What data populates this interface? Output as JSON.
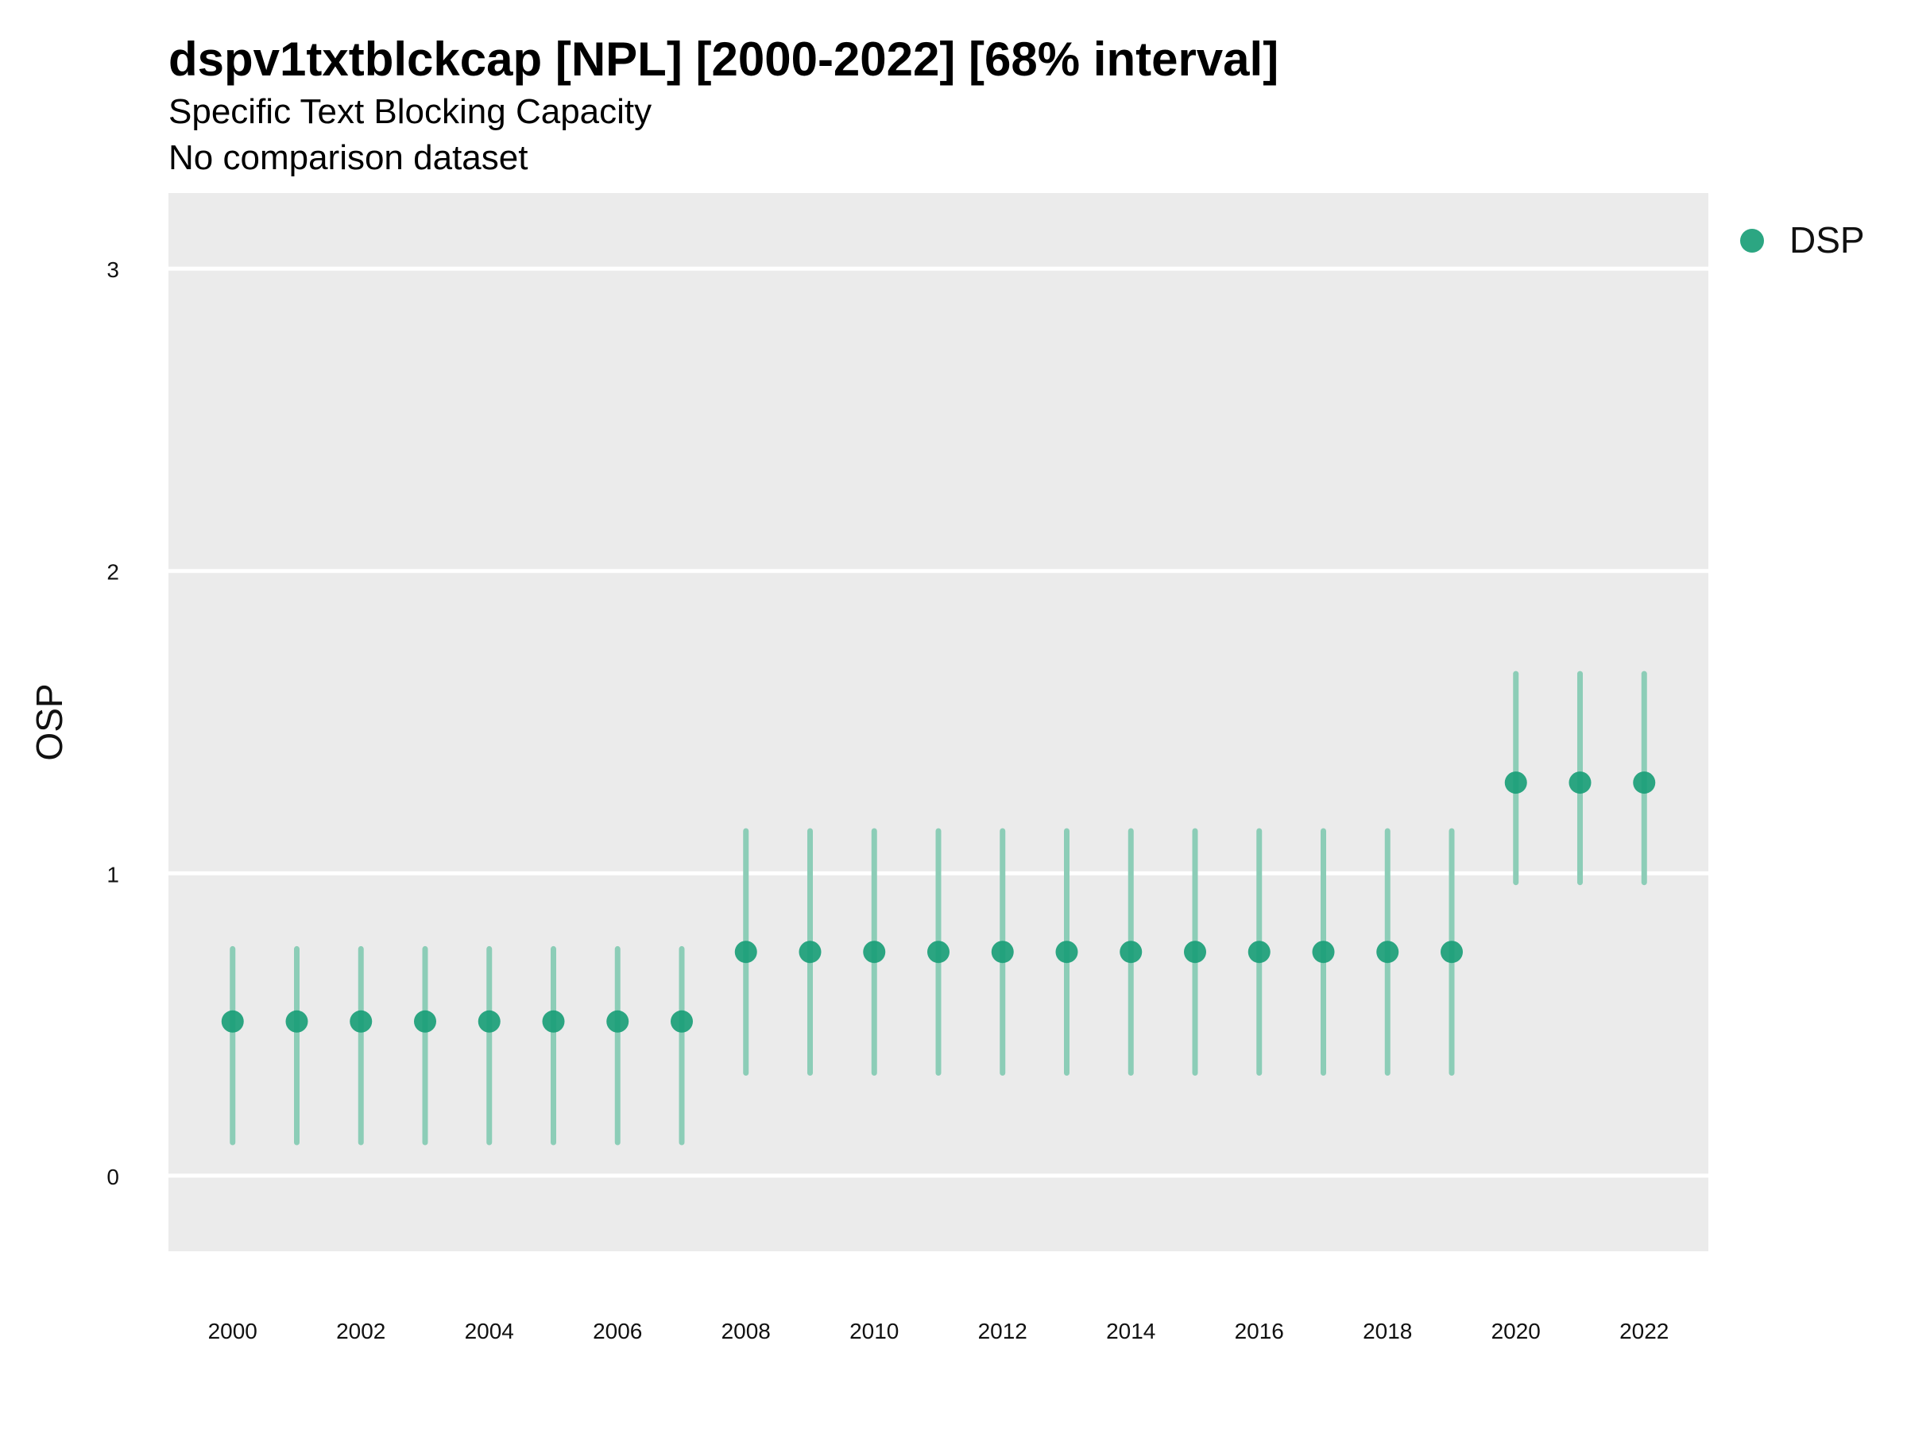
{
  "chart_data": {
    "type": "scatter",
    "title": "dspv1txtblckcap [NPL] [2000-2022] [68% interval]",
    "subtitle": "Specific Text Blocking Capacity",
    "caption": "No comparison dataset",
    "xlabel": "",
    "ylabel": "OSP",
    "ylim": [
      -0.25,
      3.25
    ],
    "xlim": [
      1999,
      2023
    ],
    "yticks": [
      "0",
      "1",
      "2",
      "3"
    ],
    "xticks": [
      "2000",
      "2002",
      "2004",
      "2006",
      "2008",
      "2010",
      "2012",
      "2014",
      "2016",
      "2018",
      "2020",
      "2022"
    ],
    "grid": true,
    "legend_position": "right",
    "colors": {
      "point": "#1a9e77",
      "interval": "#8ccdb7",
      "panel": "#ebebeb",
      "grid": "#ffffff"
    },
    "series": [
      {
        "name": "DSP",
        "x": [
          2000,
          2001,
          2002,
          2003,
          2004,
          2005,
          2006,
          2007,
          2008,
          2009,
          2010,
          2011,
          2012,
          2013,
          2014,
          2015,
          2016,
          2017,
          2018,
          2019,
          2020,
          2021,
          2022
        ],
        "y": [
          0.51,
          0.51,
          0.51,
          0.51,
          0.51,
          0.51,
          0.51,
          0.51,
          0.74,
          0.74,
          0.74,
          0.74,
          0.74,
          0.74,
          0.74,
          0.74,
          0.74,
          0.74,
          0.74,
          0.74,
          1.3,
          1.3,
          1.3
        ],
        "lower": [
          0.11,
          0.11,
          0.11,
          0.11,
          0.11,
          0.11,
          0.11,
          0.11,
          0.34,
          0.34,
          0.34,
          0.34,
          0.34,
          0.34,
          0.34,
          0.34,
          0.34,
          0.34,
          0.34,
          0.34,
          0.97,
          0.97,
          0.97
        ],
        "upper": [
          0.75,
          0.75,
          0.75,
          0.75,
          0.75,
          0.75,
          0.75,
          0.75,
          1.14,
          1.14,
          1.14,
          1.14,
          1.14,
          1.14,
          1.14,
          1.14,
          1.14,
          1.14,
          1.14,
          1.14,
          1.66,
          1.66,
          1.66
        ]
      }
    ]
  }
}
